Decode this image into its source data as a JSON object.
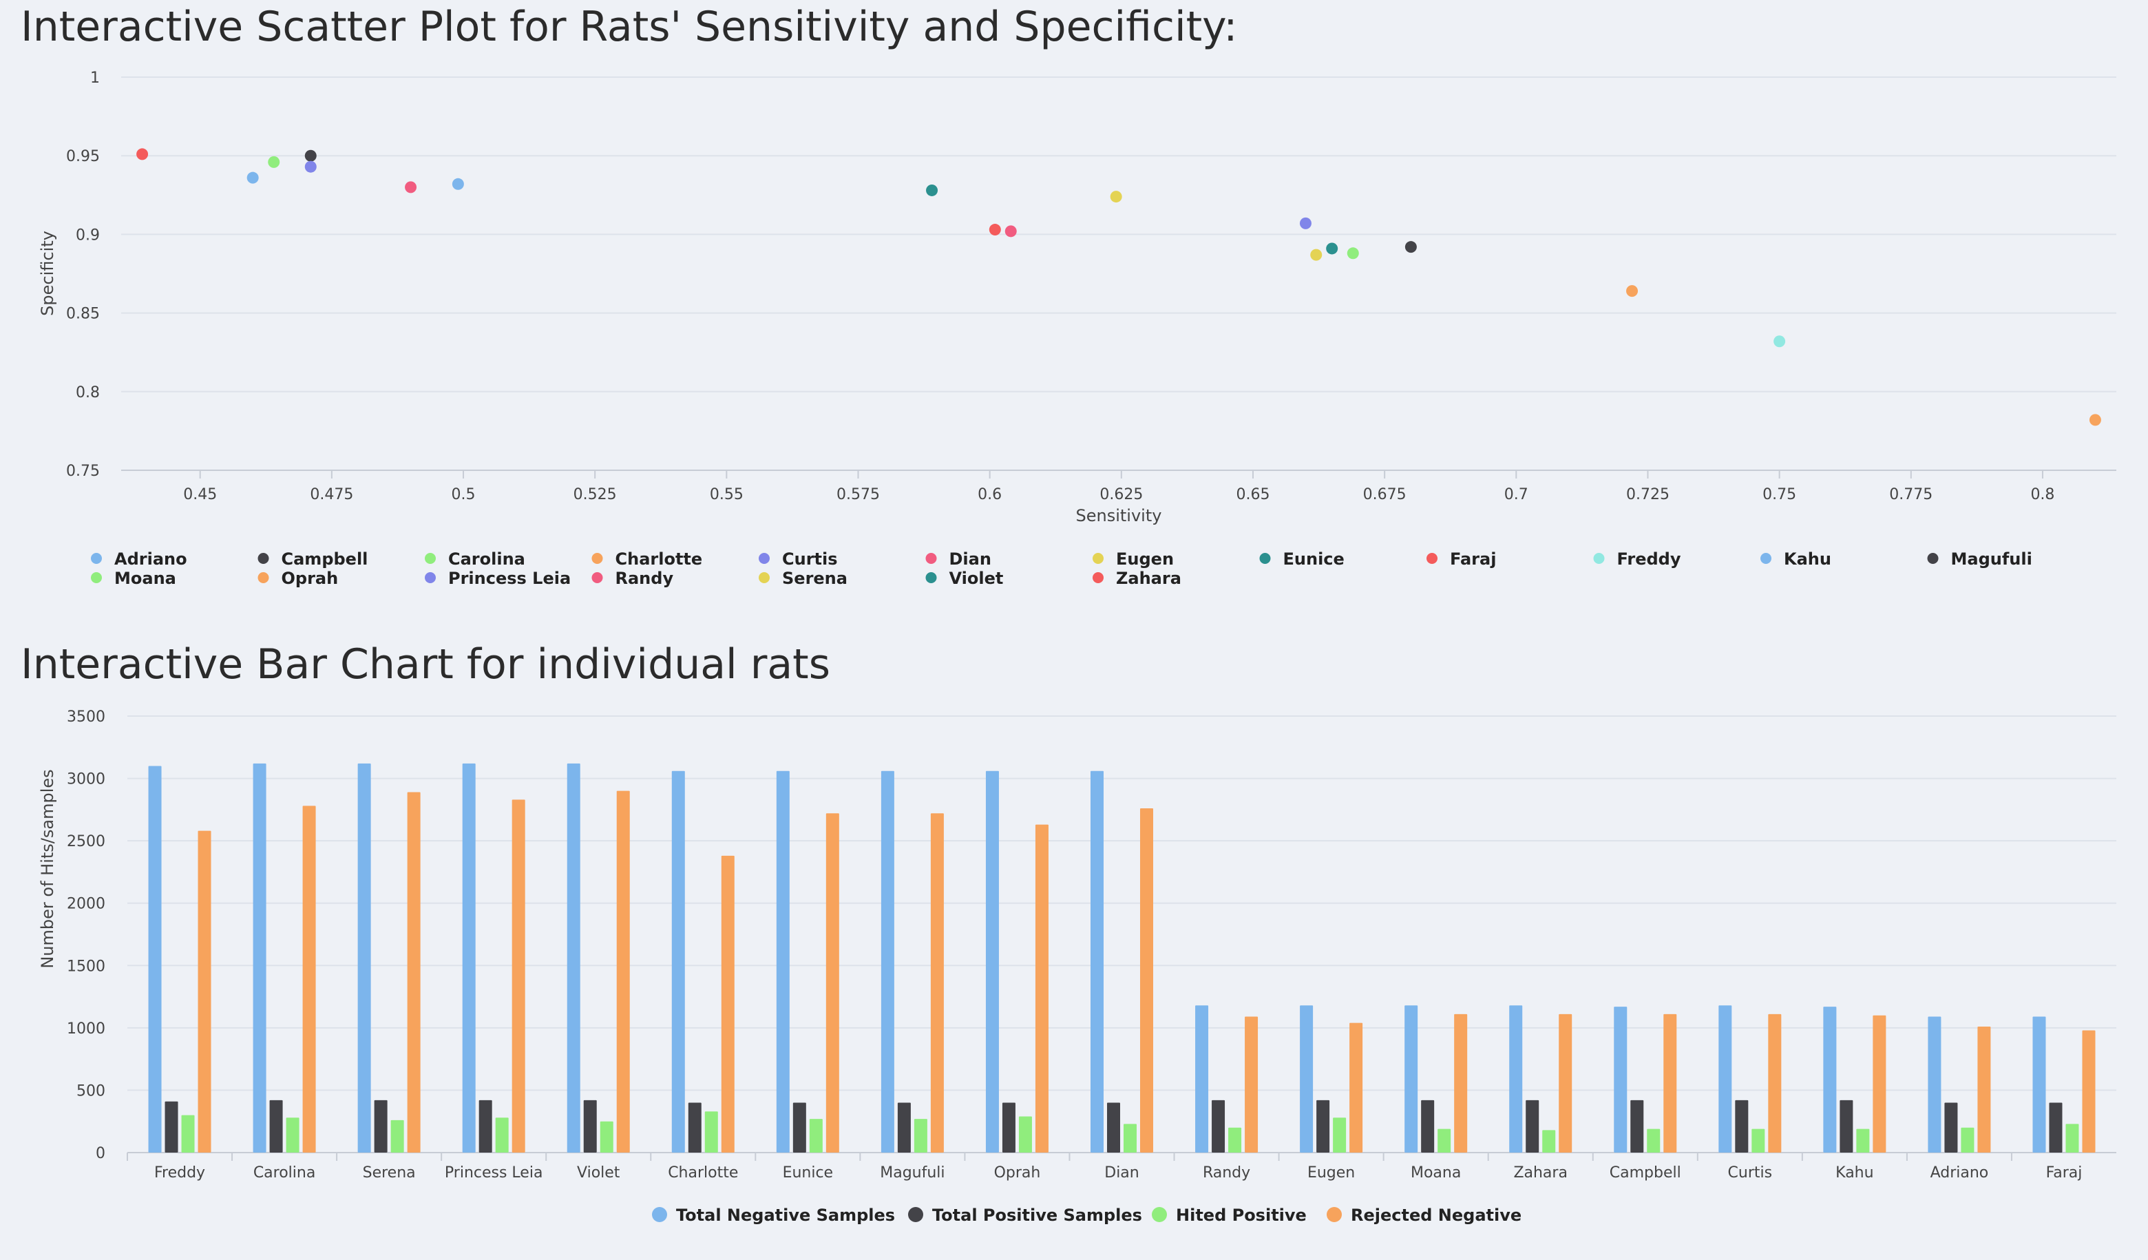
{
  "titles": {
    "scatter": "Interactive Scatter Plot for Rats' Sensitivity and Specificity:",
    "bar": "Interactive Bar Chart for individual rats"
  },
  "chart_data": [
    {
      "type": "scatter",
      "xlabel": "Sensitivity",
      "ylabel": "Specificity",
      "xlim": [
        0.435,
        0.814
      ],
      "ylim": [
        0.75,
        1.0
      ],
      "xticks": [
        "0.45",
        "0.475",
        "0.5",
        "0.525",
        "0.55",
        "0.575",
        "0.6",
        "0.625",
        "0.65",
        "0.675",
        "0.7",
        "0.725",
        "0.75",
        "0.775",
        "0.8"
      ],
      "yticks": [
        "0.75",
        "0.8",
        "0.85",
        "0.9",
        "0.95",
        "1"
      ],
      "grid": true,
      "legend_position": "bottom",
      "series": [
        {
          "name": "Adriano",
          "color": "#7cb5ec",
          "x": 0.46,
          "y": 0.936
        },
        {
          "name": "Campbell",
          "color": "#434348",
          "x": 0.471,
          "y": 0.95
        },
        {
          "name": "Carolina",
          "color": "#90ed7d",
          "x": 0.464,
          "y": 0.946
        },
        {
          "name": "Charlotte",
          "color": "#f7a35c",
          "x": 0.722,
          "y": 0.864
        },
        {
          "name": "Curtis",
          "color": "#8085e9",
          "x": 0.66,
          "y": 0.907
        },
        {
          "name": "Dian",
          "color": "#f15c80",
          "x": 0.604,
          "y": 0.902
        },
        {
          "name": "Eugen",
          "color": "#e4d354",
          "x": 0.624,
          "y": 0.924
        },
        {
          "name": "Eunice",
          "color": "#2b908f",
          "x": 0.589,
          "y": 0.928
        },
        {
          "name": "Faraj",
          "color": "#f45b5b",
          "x": 0.439,
          "y": 0.951
        },
        {
          "name": "Freddy",
          "color": "#91e8e1",
          "x": 0.75,
          "y": 0.832
        },
        {
          "name": "Kahu",
          "color": "#7cb5ec",
          "x": 0.499,
          "y": 0.932
        },
        {
          "name": "Magufuli",
          "color": "#434348",
          "x": 0.68,
          "y": 0.892
        },
        {
          "name": "Moana",
          "color": "#90ed7d",
          "x": 0.669,
          "y": 0.888
        },
        {
          "name": "Oprah",
          "color": "#f7a35c",
          "x": 0.81,
          "y": 0.782
        },
        {
          "name": "Princess Leia",
          "color": "#8085e9",
          "x": 0.471,
          "y": 0.943
        },
        {
          "name": "Randy",
          "color": "#f15c80",
          "x": 0.49,
          "y": 0.93
        },
        {
          "name": "Serena",
          "color": "#e4d354",
          "x": 0.662,
          "y": 0.887
        },
        {
          "name": "Violet",
          "color": "#2b908f",
          "x": 0.665,
          "y": 0.891
        },
        {
          "name": "Zahara",
          "color": "#f45b5b",
          "x": 0.601,
          "y": 0.903
        }
      ]
    },
    {
      "type": "bar",
      "xlabel": "",
      "ylabel": "Number of Hits/samples",
      "ylim": [
        0,
        3500
      ],
      "yticks": [
        "0",
        "500",
        "1000",
        "1500",
        "2000",
        "2500",
        "3000",
        "3500"
      ],
      "grid": true,
      "legend_position": "bottom",
      "categories": [
        "Freddy",
        "Carolina",
        "Serena",
        "Princess Leia",
        "Violet",
        "Charlotte",
        "Eunice",
        "Magufuli",
        "Oprah",
        "Dian",
        "Randy",
        "Eugen",
        "Moana",
        "Zahara",
        "Campbell",
        "Curtis",
        "Kahu",
        "Adriano",
        "Faraj"
      ],
      "series": [
        {
          "name": "Total Negative Samples",
          "color": "#7cb5ec",
          "values": [
            3100,
            3120,
            3120,
            3120,
            3120,
            3060,
            3060,
            3060,
            3060,
            3060,
            1180,
            1180,
            1180,
            1180,
            1170,
            1180,
            1170,
            1090,
            1090
          ]
        },
        {
          "name": "Total Positive Samples",
          "color": "#434348",
          "values": [
            410,
            420,
            420,
            420,
            420,
            400,
            400,
            400,
            400,
            400,
            420,
            420,
            420,
            420,
            420,
            420,
            420,
            400,
            400
          ]
        },
        {
          "name": "Hited Positive",
          "color": "#90ed7d",
          "values": [
            300,
            280,
            260,
            280,
            250,
            330,
            270,
            270,
            290,
            230,
            200,
            280,
            190,
            180,
            190,
            190,
            190,
            200,
            230
          ]
        },
        {
          "name": "Rejected Negative",
          "color": "#f7a35c",
          "values": [
            2580,
            2780,
            2890,
            2830,
            2900,
            2380,
            2720,
            2720,
            2630,
            2760,
            1090,
            1040,
            1110,
            1110,
            1110,
            1110,
            1100,
            1010,
            980
          ]
        }
      ]
    }
  ]
}
